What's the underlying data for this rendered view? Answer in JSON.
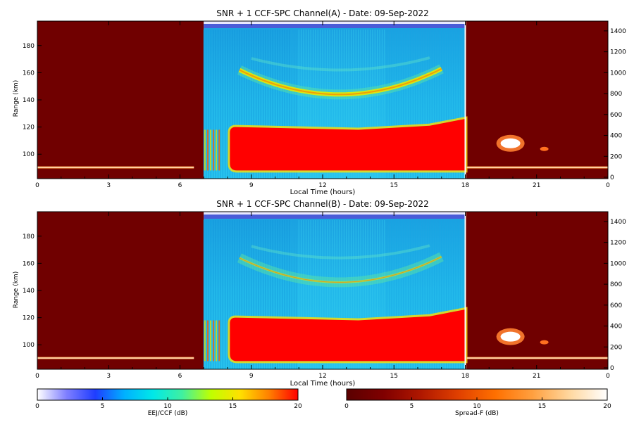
{
  "chart_data": [
    {
      "type": "heatmap",
      "title": "SNR + 1 CCF-SPC Channel(A) - Date: 09-Sep-2022",
      "xlabel": "Local Time (hours)",
      "ylabel": "Range (km)",
      "xlim": [
        0,
        24
      ],
      "ylim": [
        82,
        198
      ],
      "x_ticks": [
        "0",
        "3",
        "6",
        "9",
        "12",
        "15",
        "18",
        "21",
        "0"
      ],
      "y_ticks": [
        100,
        120,
        140,
        160,
        180
      ],
      "right_ticks": [
        0,
        200,
        400,
        600,
        800,
        1000,
        1200,
        1400
      ],
      "day_window_hours": [
        7,
        18
      ],
      "features": {
        "eej_block": {
          "start_h": 8.1,
          "end_h": 18,
          "bottom_km": 88,
          "top_km_start": 120,
          "top_km_end": 126
        },
        "valley_echo_arc": {
          "center_h": 12.7,
          "min_range_km": 144,
          "edge_range_km": 162
        },
        "night_e_layer_km": 90,
        "night_spread_f_patch": {
          "hour": 19.9,
          "range_km": 108
        }
      }
    },
    {
      "type": "heatmap",
      "title": "SNR + 1 CCF-SPC Channel(B) - Date: 09-Sep-2022",
      "xlabel": "Local Time (hours)",
      "ylabel": "Range (km)",
      "xlim": [
        0,
        24
      ],
      "ylim": [
        82,
        198
      ],
      "x_ticks": [
        "0",
        "3",
        "6",
        "9",
        "12",
        "15",
        "18",
        "21",
        "0"
      ],
      "y_ticks": [
        100,
        120,
        140,
        160,
        180
      ],
      "right_ticks": [
        0,
        200,
        400,
        600,
        800,
        1000,
        1200,
        1400
      ],
      "day_window_hours": [
        7,
        18
      ],
      "features": {
        "eej_block": {
          "start_h": 8.1,
          "end_h": 18,
          "bottom_km": 88,
          "top_km_start": 120,
          "top_km_end": 126
        },
        "valley_echo_arc": {
          "center_h": 12.7,
          "min_range_km": 146,
          "edge_range_km": 164
        },
        "night_e_layer_km": 90,
        "night_spread_f_patch": {
          "hour": 19.9,
          "range_km": 106
        }
      }
    }
  ],
  "colorbars": [
    {
      "label": "EEJ/CCF (dB)",
      "ticks": [
        "0",
        "5",
        "10",
        "15",
        "20"
      ],
      "stops": [
        "#ffffff",
        "#8080ff",
        "#1f3dff",
        "#00b0ff",
        "#00e8e8",
        "#40f0a0",
        "#c0ff00",
        "#ffe000",
        "#ff8000",
        "#ff0000"
      ]
    },
    {
      "label": "Spread-F (dB)",
      "ticks": [
        "0",
        "5",
        "10",
        "15",
        "20"
      ],
      "stops": [
        "#5a0000",
        "#800000",
        "#b01800",
        "#e04000",
        "#ff7000",
        "#ffa040",
        "#ffd8a0",
        "#ffffff"
      ]
    }
  ],
  "colors": {
    "night_bg": "#700000",
    "day_bg": "#1ab0e8",
    "eej": "#ff0000",
    "arc": "#e8e800"
  }
}
